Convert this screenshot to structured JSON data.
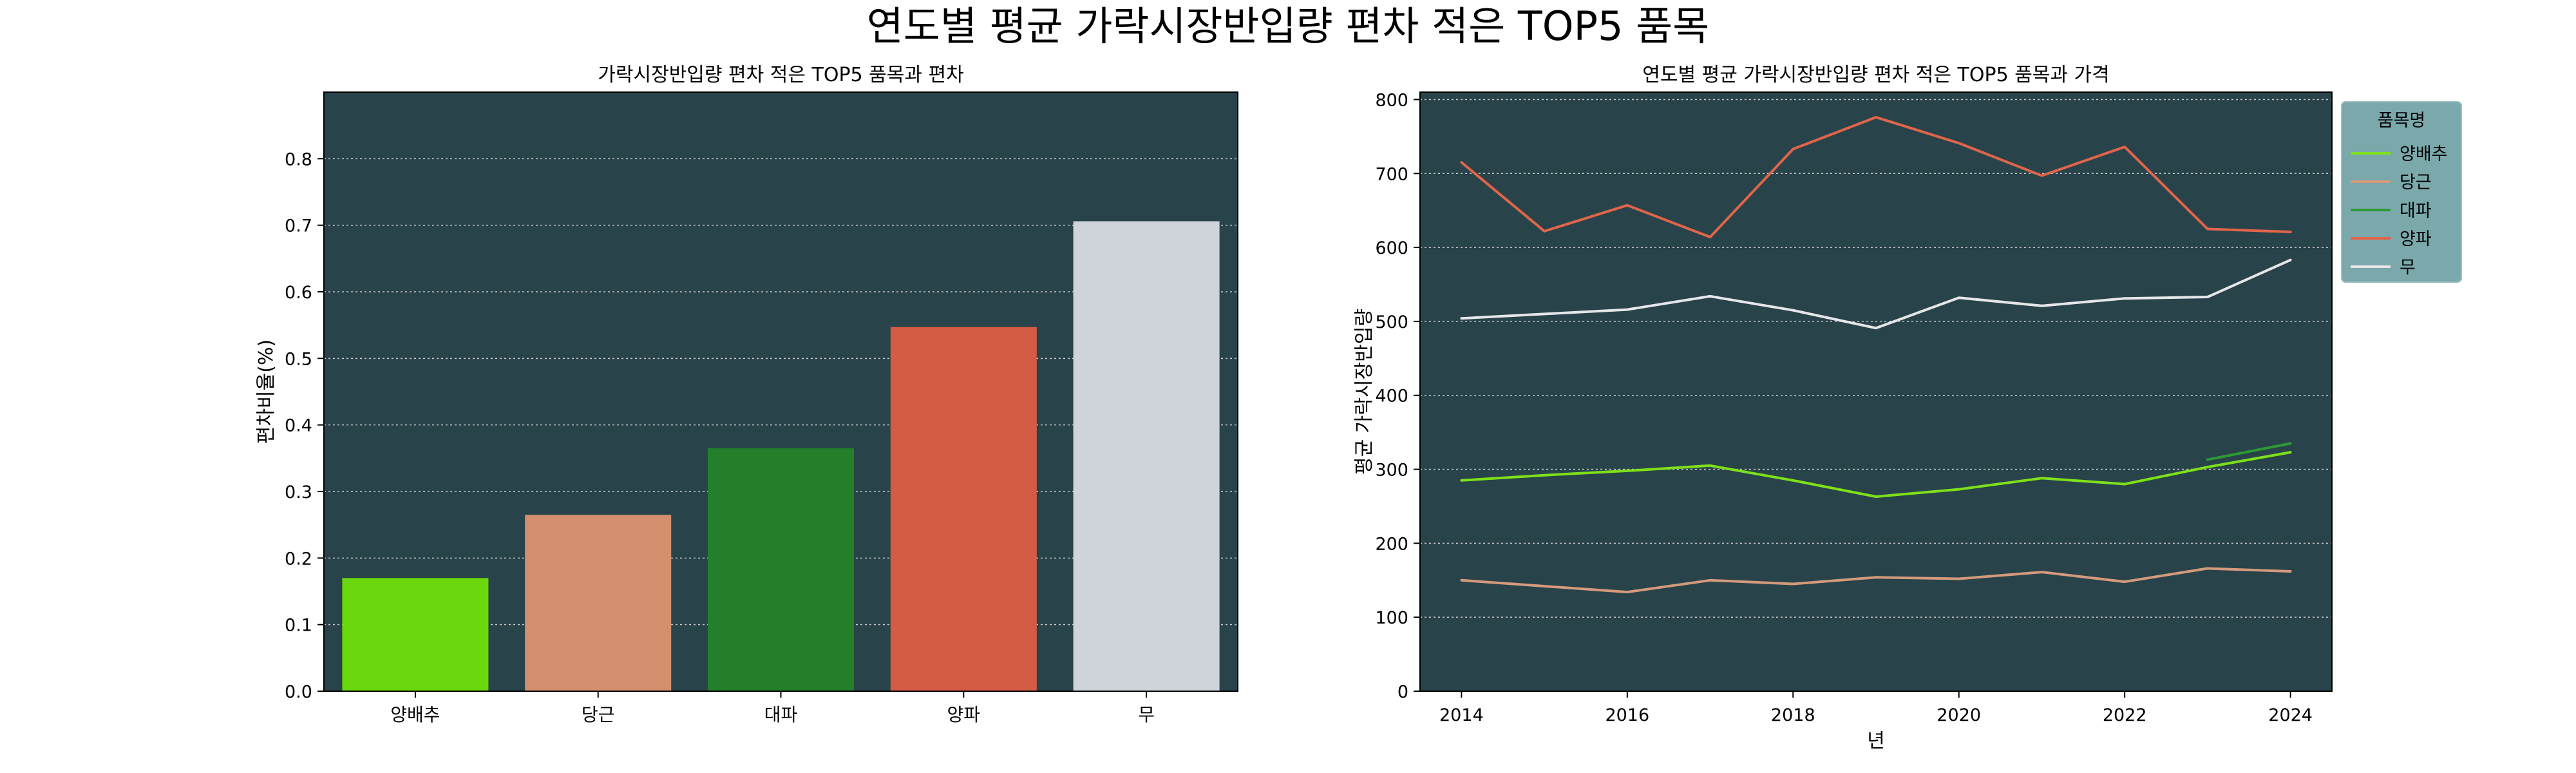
{
  "figure": {
    "suptitle": "연도별 평균 가락시장반입량 편차 적은 TOP5 품목"
  },
  "colors": {
    "plot_bg": "#29434a",
    "grid": "#c8c8c8",
    "legend_bg": "#7aa8ab",
    "axes_edge": "#000000"
  },
  "chart_data": [
    {
      "type": "bar",
      "title": "가락시장반입량 편차 적은 TOP5 품목과 편차",
      "xlabel": "",
      "ylabel": "편차비율(%)",
      "categories": [
        "양배추",
        "당근",
        "대파",
        "양파",
        "무"
      ],
      "values": [
        0.17,
        0.265,
        0.365,
        0.547,
        0.706
      ],
      "colors": [
        "#6bd80e",
        "#d4906e",
        "#237f2a",
        "#d45c45",
        "#cfd3da"
      ],
      "ylim": [
        0,
        0.9
      ],
      "yticks": [
        0.0,
        0.1,
        0.2,
        0.3,
        0.4,
        0.5,
        0.6,
        0.7,
        0.8
      ],
      "ytick_labels": [
        "0.0",
        "0.1",
        "0.2",
        "0.3",
        "0.4",
        "0.5",
        "0.6",
        "0.7",
        "0.8"
      ],
      "grid": "y-dotted"
    },
    {
      "type": "line",
      "title": "연도별 평균 가락시장반입량 편차 적은 TOP5 품목과 가격",
      "xlabel": "년",
      "ylabel": "평균 가락시장반입량",
      "xlim": [
        2013.5,
        2024.5
      ],
      "ylim": [
        0,
        810
      ],
      "xticks": [
        2014,
        2016,
        2018,
        2020,
        2022,
        2024
      ],
      "xtick_labels": [
        "2014",
        "2016",
        "2018",
        "2020",
        "2022",
        "2024"
      ],
      "yticks": [
        0,
        100,
        200,
        300,
        400,
        500,
        600,
        700,
        800
      ],
      "ytick_labels": [
        "0",
        "100",
        "200",
        "300",
        "400",
        "500",
        "600",
        "700",
        "800"
      ],
      "grid": "y-dotted",
      "legend": {
        "title": "품목명",
        "placement": "outside-top-right"
      },
      "series": [
        {
          "name": "양배추",
          "color": "#7ee019",
          "x": [
            2014,
            2015,
            2016,
            2017,
            2018,
            2019,
            2020,
            2021,
            2022,
            2023,
            2024
          ],
          "y": [
            285,
            292,
            298,
            305,
            285,
            263,
            273,
            288,
            280,
            303,
            323
          ]
        },
        {
          "name": "당근",
          "color": "#d49a7c",
          "x": [
            2014,
            2015,
            2016,
            2017,
            2018,
            2019,
            2020,
            2021,
            2022,
            2023,
            2024
          ],
          "y": [
            150,
            142,
            134,
            150,
            145,
            154,
            152,
            161,
            148,
            166,
            162
          ]
        },
        {
          "name": "대파",
          "color": "#2e9a35",
          "x": [
            2023,
            2024
          ],
          "y": [
            313,
            335
          ]
        },
        {
          "name": "양파",
          "color": "#e0654a",
          "x": [
            2014,
            2015,
            2016,
            2017,
            2018,
            2019,
            2020,
            2021,
            2022,
            2023,
            2024
          ],
          "y": [
            715,
            622,
            657,
            614,
            733,
            776,
            741,
            697,
            736,
            625,
            621
          ]
        },
        {
          "name": "무",
          "color": "#e6e6ea",
          "x": [
            2014,
            2015,
            2016,
            2017,
            2018,
            2019,
            2020,
            2021,
            2022,
            2023,
            2024
          ],
          "y": [
            504,
            510,
            516,
            534,
            515,
            491,
            532,
            521,
            531,
            533,
            583
          ]
        }
      ]
    }
  ]
}
